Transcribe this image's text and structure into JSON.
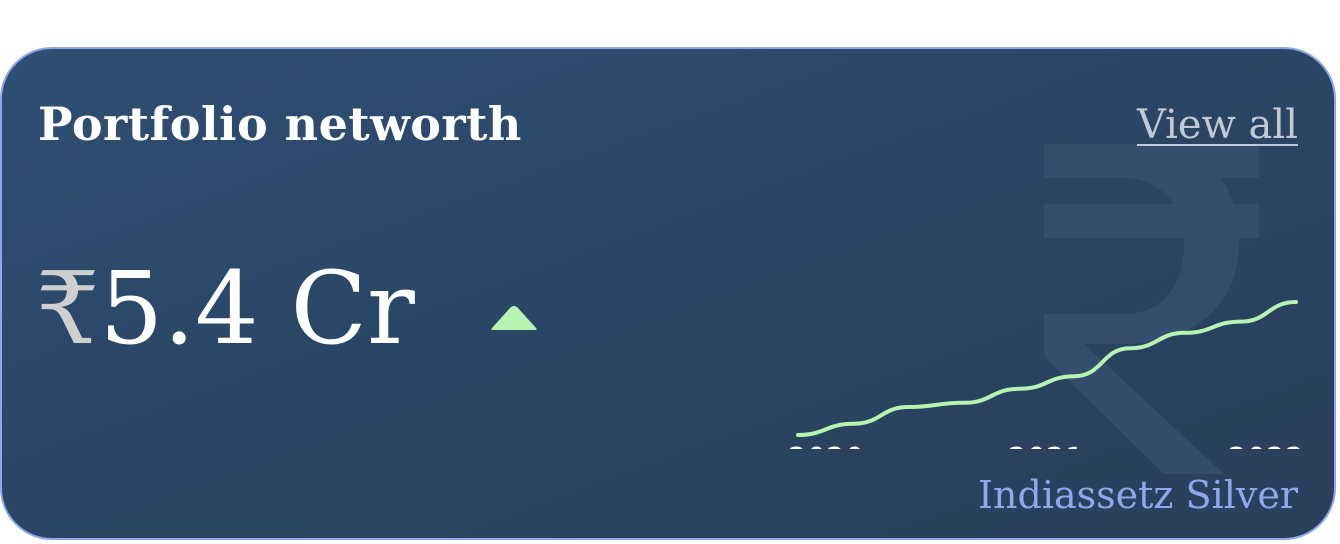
{
  "card": {
    "title": "Portfolio networth",
    "view_all_label": "View all",
    "value": {
      "currency_symbol": "₹",
      "amount": "5.4 Cr"
    },
    "trend": "up",
    "tier_label": "Indiassetz Silver",
    "watermark_icon": "rupee-icon"
  },
  "colors": {
    "card_background": "#2b4668",
    "card_border": "#8ea6ee",
    "trend_line": "#b5f5b1",
    "trend_arrow": "#b5f5b1",
    "tier_text": "#90a6f0",
    "link_text": "#c4c9d1"
  },
  "chart_data": {
    "type": "line",
    "x_tick_labels": [
      "2020",
      "2021",
      "2022"
    ],
    "series": [
      {
        "values": [
          0,
          8,
          20,
          23,
          33,
          42,
          62,
          73,
          81,
          95
        ]
      }
    ],
    "grid": false,
    "legend": "none"
  }
}
